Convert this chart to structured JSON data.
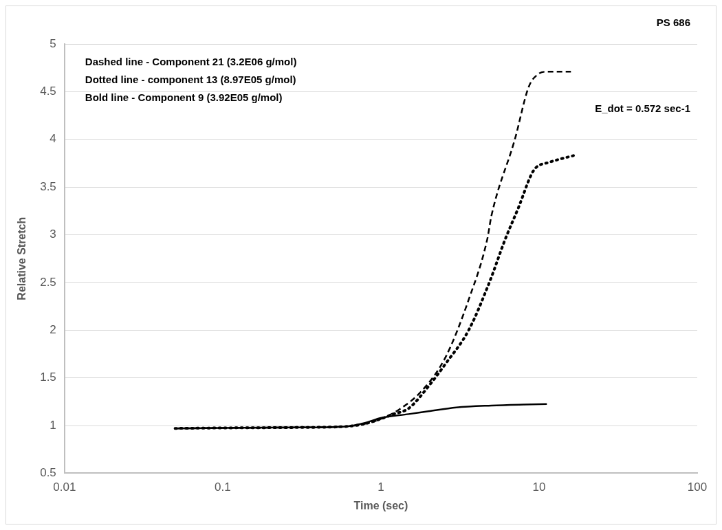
{
  "chart_data": {
    "type": "line",
    "xlabel": "Time (sec)",
    "ylabel": "Relative Stretch",
    "log": "x",
    "xlim": [
      0.01,
      100
    ],
    "xticks": [
      0.01,
      0.1,
      1,
      10,
      100
    ],
    "ylim": [
      0.5,
      5
    ],
    "yticks": [
      0.5,
      1,
      1.5,
      2,
      2.5,
      3,
      3.5,
      4,
      4.5,
      5
    ],
    "grid": "y",
    "legend": false,
    "marker": "none",
    "annotations": [
      "Dashed line - Component 21 (3.2E06 g/mol)",
      "Dotted line - component 13 (8.97E05 g/mol)",
      "Bold line - Component 9 (3.92E05 g/mol)",
      "PS 686",
      "E_dot = 0.572 sec-1"
    ],
    "series": [
      {
        "color": "#000000",
        "line_style": "dashed",
        "x": [
          0.05,
          0.1,
          0.3,
          0.6,
          0.8,
          1,
          1.31,
          1.83,
          2.57,
          3.59,
          4.7,
          5.0,
          7.03,
          8.6,
          9.8,
          11.2,
          15.9
        ],
        "values": [
          0.97,
          0.975,
          0.98,
          0.99,
          1.02,
          1.07,
          1.17,
          1.37,
          1.72,
          2.32,
          2.95,
          3.2,
          4.0,
          4.55,
          4.68,
          4.71,
          4.71
        ]
      },
      {
        "color": "#000000",
        "line_style": "dotted",
        "x": [
          0.05,
          0.1,
          0.3,
          0.6,
          0.8,
          1,
          1.2,
          1.5,
          2.02,
          2.57,
          3.59,
          4.85,
          6.1,
          7.47,
          8.87,
          9.5,
          11.6,
          16.5
        ],
        "values": [
          0.97,
          0.975,
          0.98,
          0.99,
          1.02,
          1.07,
          1.12,
          1.18,
          1.42,
          1.65,
          2.0,
          2.5,
          2.95,
          3.3,
          3.62,
          3.7,
          3.76,
          3.83
        ]
      },
      {
        "color": "#000000",
        "line_style": "solid",
        "x": [
          0.05,
          0.1,
          0.3,
          0.6,
          0.8,
          1,
          1.5,
          2,
          3,
          5,
          8,
          11.2
        ],
        "values": [
          0.97,
          0.975,
          0.98,
          0.99,
          1.03,
          1.08,
          1.12,
          1.15,
          1.19,
          1.21,
          1.22,
          1.225
        ]
      }
    ]
  }
}
